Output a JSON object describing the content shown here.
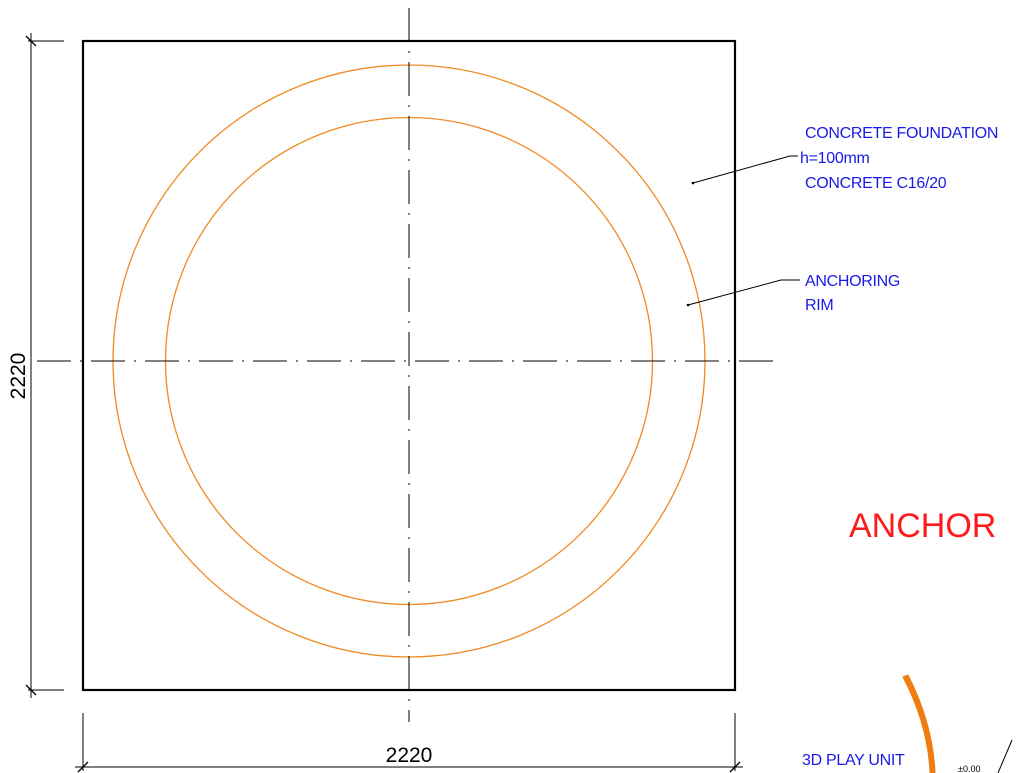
{
  "colors": {
    "outline": "#000000",
    "rim": "#f08a24",
    "annotation": "#1a1ae6",
    "title": "#ff1a1a",
    "accent_stroke": "#f07d12"
  },
  "dimensions": {
    "width_label": "2220",
    "height_label": "2220"
  },
  "notes": {
    "foundation": {
      "line1": "CONCRETE FOUNDATION",
      "line2": "h=100mm",
      "line3": "CONCRETE C16/20"
    },
    "rim": {
      "line1": "ANCHORING",
      "line2": "RIM"
    }
  },
  "title_fragment": "ANCHOR",
  "lower_right": {
    "label": "3D PLAY UNIT",
    "level": "±0.00"
  }
}
